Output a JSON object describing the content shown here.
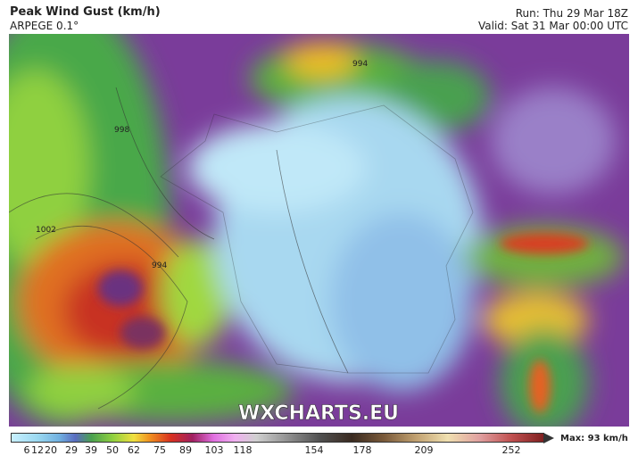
{
  "header": {
    "title": "Peak Wind Gust (km/h)",
    "model": "ARPEGE 0.1°",
    "run": "Run: Thu 29 Mar 18Z",
    "valid": "Valid: Sat 31 Mar 00:00 UTC"
  },
  "map": {
    "watermark": "WXCHARTS.EU",
    "isobars": [
      "1002",
      "994",
      "994",
      "998"
    ]
  },
  "colorbar": {
    "ticks": [
      "6",
      "12",
      "20",
      "29",
      "39",
      "50",
      "62",
      "75",
      "89",
      "103",
      "118",
      "154",
      "178",
      "209",
      "252"
    ],
    "max": "Max: 93 km/h"
  }
}
